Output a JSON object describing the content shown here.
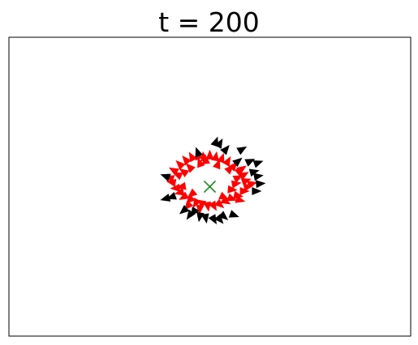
{
  "chart_data": {
    "type": "scatter",
    "title": "t = 200",
    "xlabel": "",
    "ylabel": "",
    "xlim": [
      -1.0,
      1.0
    ],
    "ylim": [
      -1.0,
      1.0
    ],
    "grid": false,
    "ticks_visible": false,
    "center_marker": {
      "x": 0.0,
      "y": 0.0,
      "marker": "x",
      "color": "#1f8a1f"
    },
    "series": [
      {
        "marker": "triangle",
        "color": "#ff0000",
        "points": [
          {
            "x": -0.2,
            "y": 0.06,
            "angle": 200
          },
          {
            "x": -0.18,
            "y": 0.11,
            "angle": 210
          },
          {
            "x": -0.15,
            "y": 0.15,
            "angle": 225
          },
          {
            "x": -0.12,
            "y": 0.18,
            "angle": 230
          },
          {
            "x": -0.09,
            "y": 0.2,
            "angle": 240
          },
          {
            "x": -0.06,
            "y": 0.21,
            "angle": 250
          },
          {
            "x": -0.03,
            "y": 0.2,
            "angle": 260
          },
          {
            "x": 0.0,
            "y": 0.21,
            "angle": 270
          },
          {
            "x": 0.03,
            "y": 0.2,
            "angle": 280
          },
          {
            "x": 0.06,
            "y": 0.19,
            "angle": 290
          },
          {
            "x": 0.09,
            "y": 0.17,
            "angle": 300
          },
          {
            "x": 0.12,
            "y": 0.14,
            "angle": 310
          },
          {
            "x": 0.15,
            "y": 0.11,
            "angle": 320
          },
          {
            "x": 0.17,
            "y": 0.08,
            "angle": 330
          },
          {
            "x": 0.18,
            "y": 0.04,
            "angle": 340
          },
          {
            "x": 0.19,
            "y": 0.0,
            "angle": 350
          },
          {
            "x": 0.17,
            "y": -0.03,
            "angle": 0
          },
          {
            "x": 0.14,
            "y": -0.06,
            "angle": 10
          },
          {
            "x": 0.11,
            "y": -0.08,
            "angle": 20
          },
          {
            "x": 0.08,
            "y": -0.1,
            "angle": 30
          },
          {
            "x": 0.05,
            "y": -0.12,
            "angle": 40
          },
          {
            "x": 0.02,
            "y": -0.13,
            "angle": 60
          },
          {
            "x": -0.01,
            "y": -0.13,
            "angle": 80
          },
          {
            "x": -0.04,
            "y": -0.12,
            "angle": 100
          },
          {
            "x": -0.07,
            "y": -0.11,
            "angle": 120
          },
          {
            "x": -0.1,
            "y": -0.09,
            "angle": 135
          },
          {
            "x": -0.13,
            "y": -0.07,
            "angle": 150
          },
          {
            "x": -0.15,
            "y": -0.04,
            "angle": 165
          },
          {
            "x": -0.17,
            "y": -0.01,
            "angle": 175
          },
          {
            "x": -0.19,
            "y": 0.03,
            "angle": 190
          },
          {
            "x": -0.13,
            "y": 0.1,
            "angle": 215
          },
          {
            "x": -0.1,
            "y": 0.13,
            "angle": 225
          },
          {
            "x": -0.05,
            "y": 0.16,
            "angle": 250
          },
          {
            "x": 0.04,
            "y": 0.15,
            "angle": 290
          },
          {
            "x": 0.1,
            "y": 0.12,
            "angle": 315
          },
          {
            "x": 0.14,
            "y": 0.06,
            "angle": 335
          },
          {
            "x": 0.13,
            "y": 0.02,
            "angle": 350
          },
          {
            "x": 0.11,
            "y": -0.02,
            "angle": 5
          },
          {
            "x": 0.07,
            "y": -0.07,
            "angle": 25
          },
          {
            "x": -0.09,
            "y": -0.05,
            "angle": 140
          },
          {
            "x": -0.14,
            "y": 0.0,
            "angle": 170
          },
          {
            "x": -0.16,
            "y": 0.08,
            "angle": 205
          },
          {
            "x": -0.02,
            "y": 0.18,
            "angle": 265
          },
          {
            "x": 0.16,
            "y": 0.12,
            "angle": 325
          },
          {
            "x": 0.21,
            "y": 0.02,
            "angle": 345
          },
          {
            "x": 0.15,
            "y": -0.09,
            "angle": 15
          },
          {
            "x": -0.05,
            "y": -0.15,
            "angle": 95
          },
          {
            "x": -0.11,
            "y": -0.13,
            "angle": 130
          }
        ]
      },
      {
        "marker": "triangle",
        "color": "#000000",
        "points": [
          {
            "x": 0.03,
            "y": 0.3,
            "angle": 290
          },
          {
            "x": 0.05,
            "y": 0.29,
            "angle": 300
          },
          {
            "x": -0.06,
            "y": 0.23,
            "angle": 250
          },
          {
            "x": 0.08,
            "y": 0.25,
            "angle": 310
          },
          {
            "x": 0.16,
            "y": 0.25,
            "angle": 330
          },
          {
            "x": 0.14,
            "y": 0.17,
            "angle": 320
          },
          {
            "x": 0.2,
            "y": 0.17,
            "angle": 335
          },
          {
            "x": 0.24,
            "y": 0.16,
            "angle": 340
          },
          {
            "x": 0.22,
            "y": 0.1,
            "angle": 345
          },
          {
            "x": 0.24,
            "y": 0.07,
            "angle": 350
          },
          {
            "x": 0.25,
            "y": 0.02,
            "angle": 355
          },
          {
            "x": 0.23,
            "y": -0.03,
            "angle": 0
          },
          {
            "x": 0.12,
            "y": -0.19,
            "angle": 20
          },
          {
            "x": 0.07,
            "y": -0.2,
            "angle": 40
          },
          {
            "x": 0.05,
            "y": -0.22,
            "angle": 50
          },
          {
            "x": 0.02,
            "y": -0.22,
            "angle": 60
          },
          {
            "x": -0.02,
            "y": -0.21,
            "angle": 80
          },
          {
            "x": -0.08,
            "y": -0.17,
            "angle": 120
          },
          {
            "x": -0.1,
            "y": -0.19,
            "angle": 125
          },
          {
            "x": -0.13,
            "y": -0.16,
            "angle": 140
          },
          {
            "x": -0.22,
            "y": -0.08,
            "angle": 165
          },
          {
            "x": -0.19,
            "y": -0.07,
            "angle": 160
          },
          {
            "x": -0.22,
            "y": 0.07,
            "angle": 200
          },
          {
            "x": -0.05,
            "y": -0.2,
            "angle": 100
          }
        ]
      }
    ]
  }
}
